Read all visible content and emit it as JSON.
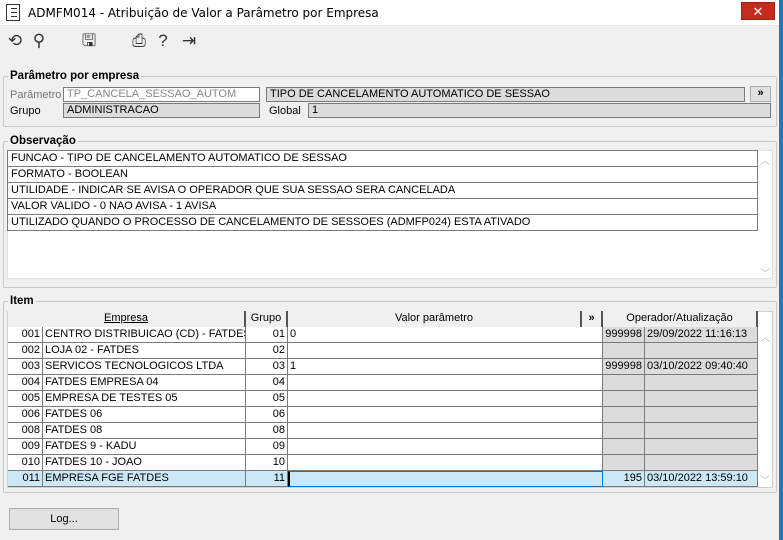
{
  "window": {
    "title": "ADMFM014 - Atribuição de Valor a Parâmetro por Empresa",
    "close": "✕"
  },
  "toolbar": [
    {
      "name": "undo-icon",
      "glyph": "⟲"
    },
    {
      "name": "search-icon",
      "glyph": "⚲"
    },
    {
      "name": "save-icon",
      "glyph": "🖫"
    },
    {
      "name": "print-icon",
      "glyph": "⎙"
    },
    {
      "name": "help-icon",
      "glyph": "?"
    },
    {
      "name": "exit-icon",
      "glyph": "⇥"
    }
  ],
  "parametro": {
    "legend": "Parâmetro por empresa",
    "param_label": "Parâmetro",
    "param_value": "TP_CANCELA_SESSAO_AUTOM",
    "param_desc": "TIPO DE CANCELAMENTO AUTOMATICO DE SESSAO",
    "more_button": "»",
    "grupo_label": "Grupo",
    "grupo_value": "ADMINISTRACAO",
    "global_label": "Global",
    "global_value": "1"
  },
  "observacao": {
    "legend": "Observação",
    "lines": [
      "FUNCAO - TIPO DE CANCELAMENTO AUTOMATICO DE SESSAO",
      "FORMATO - BOOLEAN",
      "UTILIDADE - INDICAR SE AVISA O OPERADOR QUE SUA SESSAO SERA CANCELADA",
      "VALOR VALIDO - 0 NAO AVISA - 1 AVISA",
      "UTILIZADO QUANDO O PROCESSO DE CANCELAMENTO DE SESSOES (ADMFP024) ESTA ATIVADO"
    ]
  },
  "item": {
    "legend": "Item",
    "headers": {
      "empresa": "Empresa",
      "grupo": "Grupo",
      "valor": "Valor parâmetro",
      "more": "»",
      "operador": "Operador/Atualização"
    },
    "rows": [
      {
        "code": "001",
        "name": "CENTRO DISTRIBUICAO (CD) - FATDES",
        "grupo": "01",
        "valor": "0",
        "operador": "999998",
        "data": "29/09/2022 11:16:13"
      },
      {
        "code": "002",
        "name": "LOJA 02 - FATDES",
        "grupo": "02",
        "valor": "",
        "operador": "",
        "data": ""
      },
      {
        "code": "003",
        "name": "SERVICOS TECNOLOGICOS LTDA",
        "grupo": "03",
        "valor": "1",
        "operador": "999998",
        "data": "03/10/2022 09:40:40"
      },
      {
        "code": "004",
        "name": "FATDES EMPRESA 04",
        "grupo": "04",
        "valor": "",
        "operador": "",
        "data": ""
      },
      {
        "code": "005",
        "name": "EMPRESA DE TESTES 05",
        "grupo": "05",
        "valor": "",
        "operador": "",
        "data": ""
      },
      {
        "code": "006",
        "name": "FATDES 06",
        "grupo": "06",
        "valor": "",
        "operador": "",
        "data": ""
      },
      {
        "code": "008",
        "name": "FATDES 08",
        "grupo": "08",
        "valor": "",
        "operador": "",
        "data": ""
      },
      {
        "code": "009",
        "name": "FATDES 9 - KADU",
        "grupo": "09",
        "valor": "",
        "operador": "",
        "data": ""
      },
      {
        "code": "010",
        "name": "FATDES 10 - JOAO",
        "grupo": "10",
        "valor": "",
        "operador": "",
        "data": ""
      },
      {
        "code": "011",
        "name": "EMPRESA FGE FATDES",
        "grupo": "11",
        "valor": "",
        "operador": "195",
        "data": "03/10/2022 13:59:10",
        "selected": true
      }
    ]
  },
  "log_button": "Log...",
  "colors": {
    "selected_row": "#cce8f7",
    "readonly": "#dcdcdc",
    "close": "#c42b1c",
    "border_accent": "#1979ca"
  }
}
